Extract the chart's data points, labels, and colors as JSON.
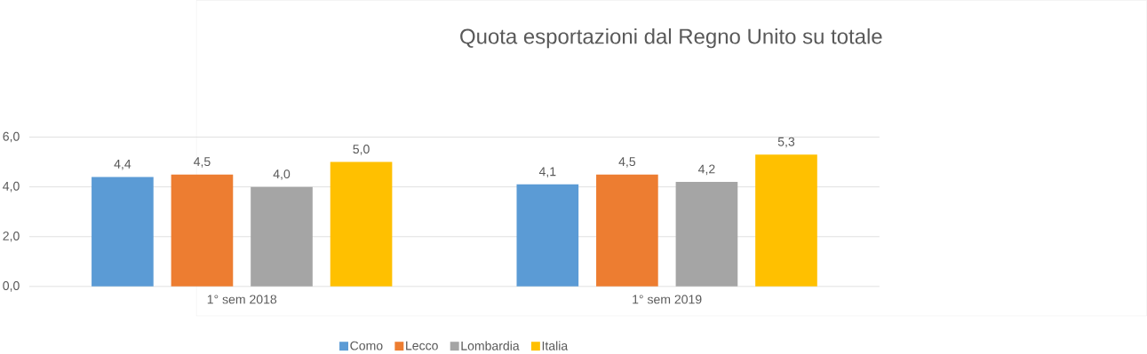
{
  "chart_data": {
    "type": "bar",
    "title": "Quota esportazioni dal Regno Unito su totale",
    "categories": [
      "1° sem 2018",
      "1° sem 2019"
    ],
    "series": [
      {
        "name": "Como",
        "color": "#5b9bd5",
        "values": [
          4.4,
          4.1
        ],
        "value_labels": [
          "4,4",
          "4,1"
        ]
      },
      {
        "name": "Lecco",
        "color": "#ed7d31",
        "values": [
          4.5,
          4.5
        ],
        "value_labels": [
          "4,5",
          "4,5"
        ]
      },
      {
        "name": "Lombardia",
        "color": "#a5a5a5",
        "values": [
          4.0,
          4.2
        ],
        "value_labels": [
          "4,0",
          "4,2"
        ]
      },
      {
        "name": "Italia",
        "color": "#ffc000",
        "values": [
          5.0,
          5.3
        ],
        "value_labels": [
          "5,0",
          "5,3"
        ]
      }
    ],
    "ylim": [
      0,
      6
    ],
    "yticks": [
      {
        "value": 0,
        "label": "0,0"
      },
      {
        "value": 2,
        "label": "2,0"
      },
      {
        "value": 4,
        "label": "4,0"
      },
      {
        "value": 6,
        "label": "6,0"
      }
    ],
    "grid": "y",
    "legend": "bottom"
  }
}
